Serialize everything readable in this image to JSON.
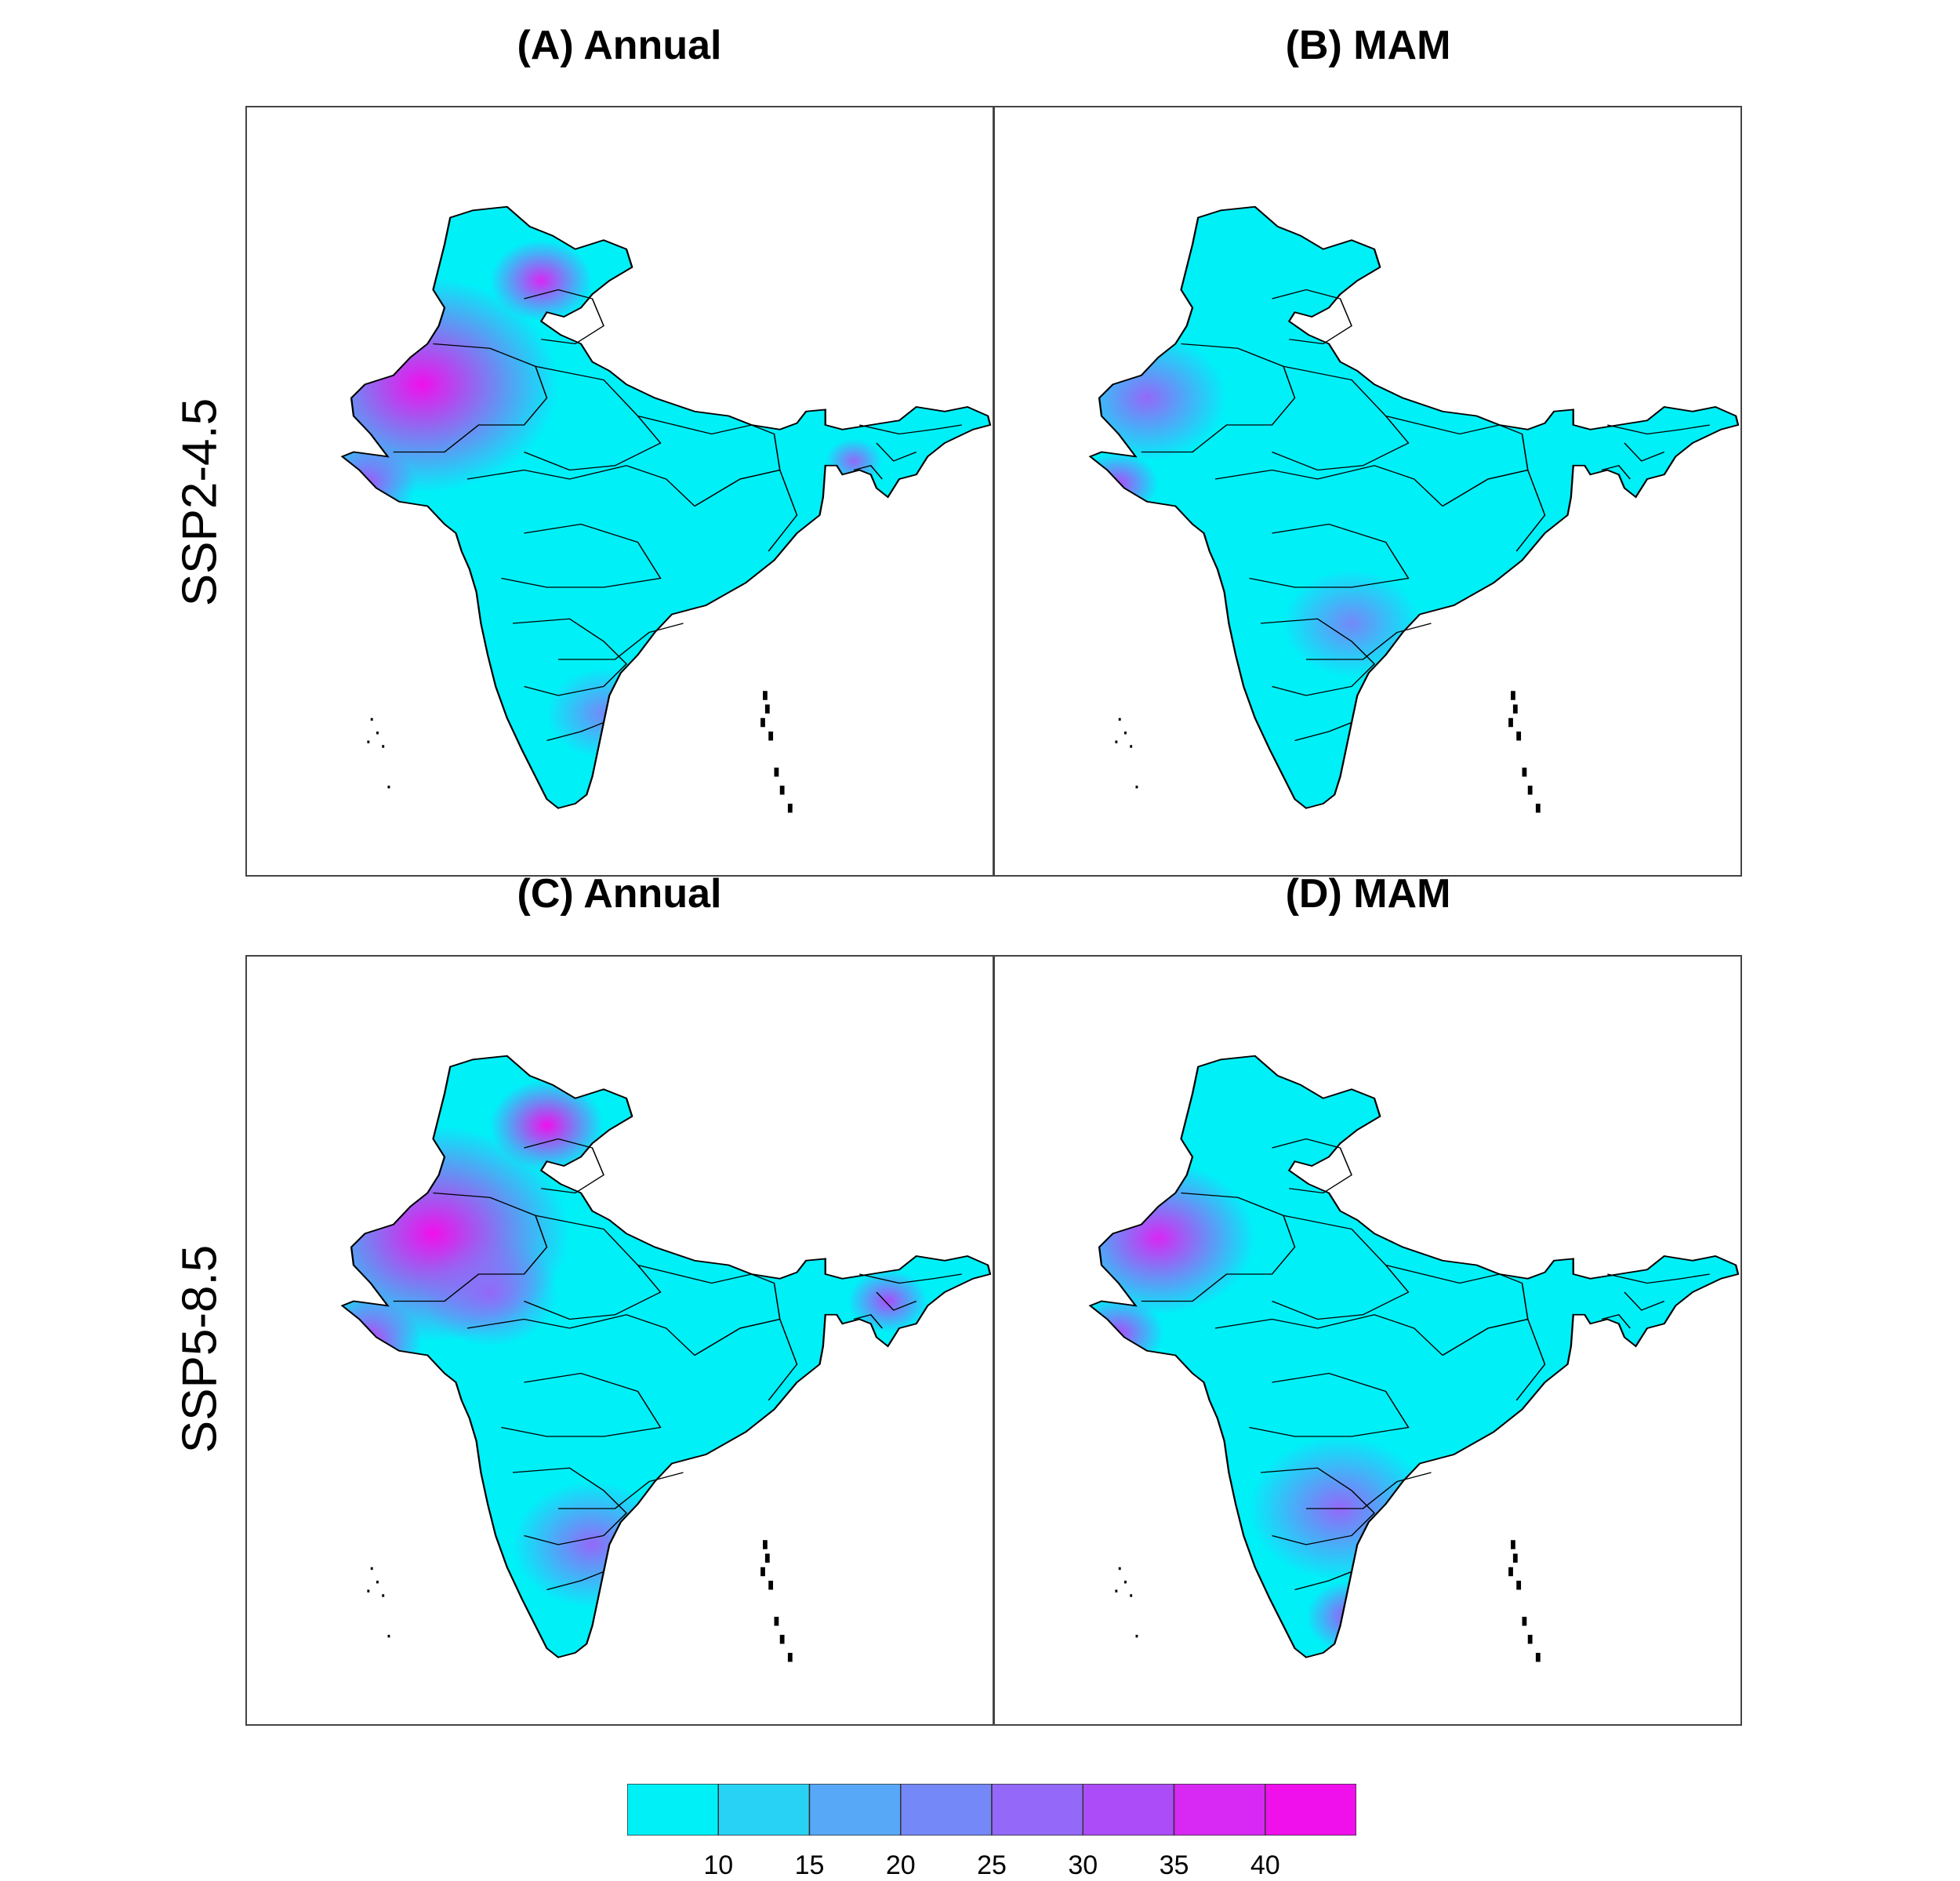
{
  "panels": [
    {
      "label": "(A) Annual",
      "scenario": "SSP2-4.5",
      "period": "Annual"
    },
    {
      "label": "(B) MAM",
      "scenario": "SSP2-4.5",
      "period": "MAM"
    },
    {
      "label": "(C) Annual",
      "scenario": "SSP5-8.5",
      "period": "Annual"
    },
    {
      "label": "(D) MAM",
      "scenario": "SSP5-8.5",
      "period": "MAM"
    }
  ],
  "rows": [
    "SSP2-4.5",
    "SSP5-8.5"
  ],
  "legend": {
    "ticks": [
      "10",
      "15",
      "20",
      "25",
      "30",
      "35",
      "40"
    ],
    "colors": [
      "#00f0f8",
      "#28d2f4",
      "#58a8f8",
      "#7488f8",
      "#9468f8",
      "#ac4cf8",
      "#d828f4",
      "#f010ec"
    ]
  }
}
